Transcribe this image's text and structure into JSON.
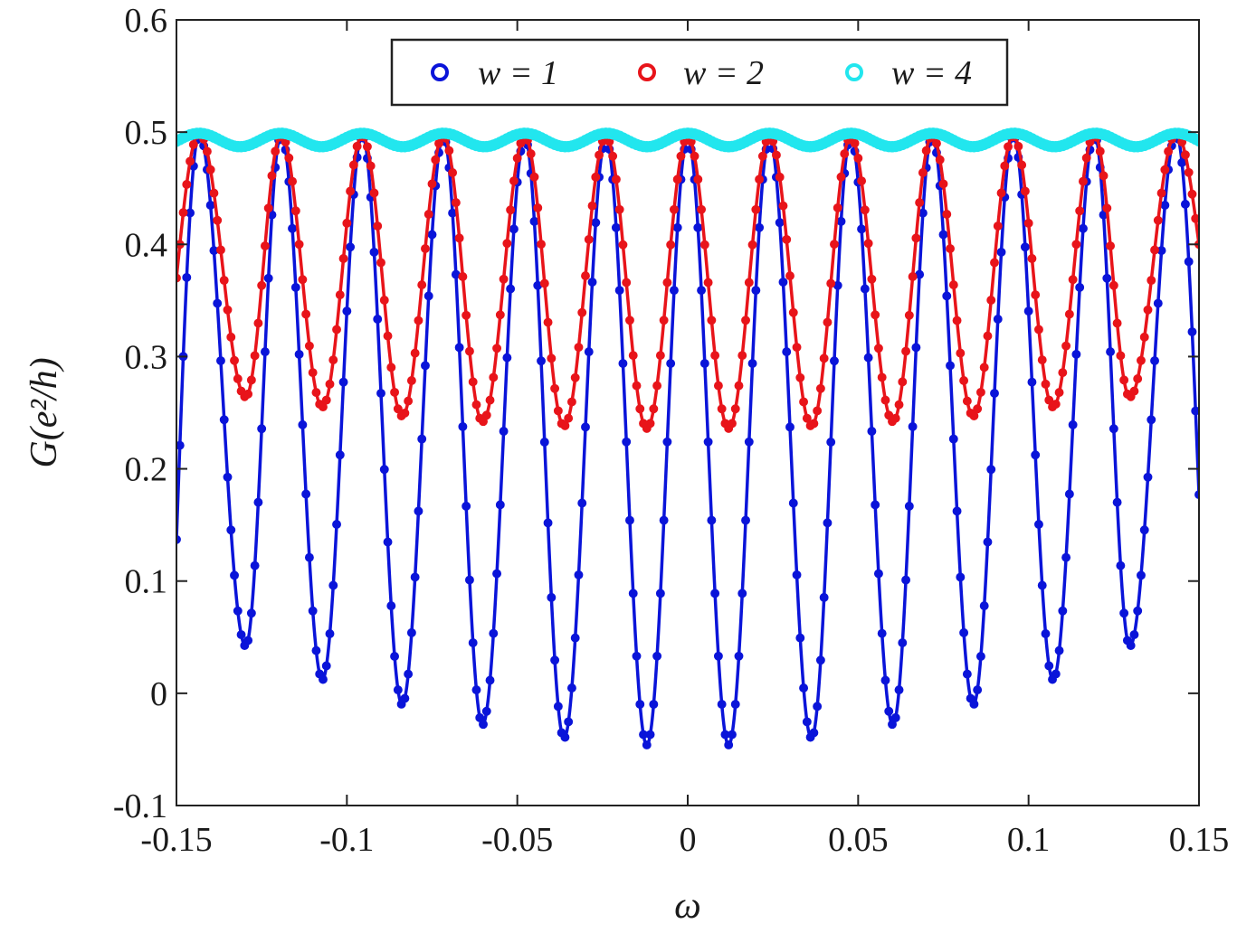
{
  "chart_data": {
    "type": "line",
    "xlabel": "ω",
    "ylabel": "G(e²/h)",
    "xlim": [
      -0.15,
      0.15
    ],
    "ylim": [
      -0.1,
      0.6
    ],
    "x_ticks": [
      "-0.15",
      "-0.1",
      "-0.05",
      "0",
      "0.05",
      "0.1",
      "0.15"
    ],
    "x_tick_values": [
      -0.15,
      -0.1,
      -0.05,
      0,
      0.05,
      0.1,
      0.15
    ],
    "y_ticks": [
      "-0.1",
      "0",
      "0.1",
      "0.2",
      "0.3",
      "0.4",
      "0.5",
      "0.6"
    ],
    "y_tick_values": [
      -0.1,
      0,
      0.1,
      0.2,
      0.3,
      0.4,
      0.5,
      0.6
    ],
    "legend_position": "top-center",
    "colors": {
      "w1": "#0a14d9",
      "w2": "#e8141a",
      "w4": "#22e6ee",
      "axis": "#222222"
    },
    "series": [
      {
        "name": "w = 1",
        "color": "#0a14d9",
        "marker": "circle",
        "peaks": {
          "x": [
            -0.1433,
            -0.1193,
            -0.0955,
            -0.0717,
            -0.0478,
            -0.024,
            0.0,
            0.024,
            0.0478,
            0.0717,
            0.0955,
            0.1193,
            0.1433
          ],
          "y": [
            0.498,
            0.498,
            0.497,
            0.496,
            0.495,
            0.494,
            0.494,
            0.494,
            0.495,
            0.496,
            0.497,
            0.498,
            0.498
          ]
        },
        "valleys": {
          "x": [
            -0.1297,
            -0.1072,
            -0.0838,
            -0.0602,
            -0.0363,
            -0.012,
            0.012,
            0.0363,
            0.0602,
            0.0838,
            0.1072,
            0.1297
          ],
          "y": [
            0.042,
            0.012,
            -0.01,
            -0.028,
            -0.04,
            -0.046,
            -0.046,
            -0.04,
            -0.028,
            -0.01,
            0.012,
            0.042
          ]
        },
        "endpoints": {
          "x": [
            -0.15,
            0.15
          ],
          "y": [
            0.137,
            0.177
          ]
        }
      },
      {
        "name": "w = 2",
        "color": "#e8141a",
        "marker": "circle",
        "peaks": {
          "x": [
            -0.1433,
            -0.1193,
            -0.0955,
            -0.0717,
            -0.0478,
            -0.024,
            0.0,
            0.024,
            0.0478,
            0.0717,
            0.0955,
            0.1193,
            0.1433
          ],
          "y": [
            0.499,
            0.498,
            0.497,
            0.497,
            0.496,
            0.496,
            0.496,
            0.496,
            0.496,
            0.497,
            0.497,
            0.498,
            0.499
          ]
        },
        "valleys": {
          "x": [
            -0.1297,
            -0.1072,
            -0.0838,
            -0.0602,
            -0.0363,
            -0.012,
            0.012,
            0.0363,
            0.0602,
            0.0838,
            0.1072,
            0.1297
          ],
          "y": [
            0.264,
            0.255,
            0.247,
            0.242,
            0.238,
            0.236,
            0.236,
            0.238,
            0.242,
            0.247,
            0.255,
            0.264
          ]
        },
        "endpoints": {
          "x": [
            -0.15,
            0.15
          ],
          "y": [
            0.37,
            0.4
          ]
        }
      },
      {
        "name": "w = 4",
        "color": "#22e6ee",
        "marker": "circle",
        "mean": 0.493,
        "amplitude": 0.006,
        "period": 0.0239,
        "phase_x": -0.1433
      }
    ]
  }
}
